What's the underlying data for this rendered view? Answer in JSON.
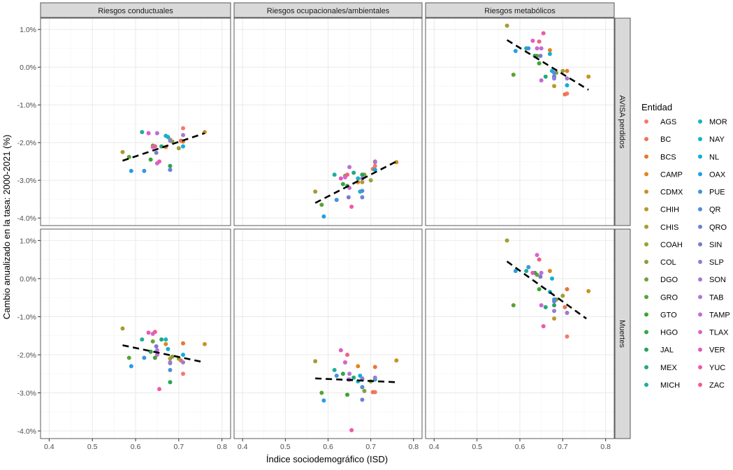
{
  "chart_data": {
    "type": "scatter",
    "xlabel": "Índice sociodemográfico (ISD)",
    "ylabel": "Cambio anualizado en la tasa: 2000-2021 (%)",
    "xlim": [
      0.38,
      0.82
    ],
    "ylim": [
      -4.2,
      1.3
    ],
    "x_ticks": [
      0.4,
      0.5,
      0.6,
      0.7,
      0.8
    ],
    "x_tick_labels": [
      "0.4",
      "0.5",
      "0.6",
      "0.7",
      "0.8"
    ],
    "y_ticks": [
      1,
      0,
      -1,
      -2,
      -3,
      -4
    ],
    "y_tick_labels": [
      "1.0%",
      "0.0%",
      "-1.0%",
      "-2.0%",
      "-3.0%",
      "-4.0%"
    ],
    "grid": true,
    "col_facets": [
      "Riesgos conductuales",
      "Riesgos ocupacionales/ambientales",
      "Riesgos metabólicos"
    ],
    "row_facets": [
      "AVISA perdidos",
      "Muertes"
    ],
    "legend": {
      "title": "Entidad",
      "placement": "right",
      "entities": [
        "AGS",
        "BC",
        "BCS",
        "CAMP",
        "CDMX",
        "CHIH",
        "CHIS",
        "COAH",
        "COL",
        "DGO",
        "GRO",
        "GTO",
        "HGO",
        "JAL",
        "MEX",
        "MICH",
        "MOR",
        "NAY",
        "NL",
        "OAX",
        "PUE",
        "QR",
        "QRO",
        "SIN",
        "SLP",
        "SON",
        "TAB",
        "TAMP",
        "TLAX",
        "VER",
        "YUC",
        "ZAC"
      ],
      "colors": [
        "hsl(4,88%,70%)",
        "hsl(14,80%,62%)",
        "hsl(23,78%,55%)",
        "hsl(32,75%,50%)",
        "hsl(39,70%,47%)",
        "hsl(46,62%,45%)",
        "hsl(55,55%,42%)",
        "hsl(65,50%,42%)",
        "hsl(75,50%,42%)",
        "hsl(88,50%,42%)",
        "hsl(101,52%,42%)",
        "hsl(115,55%,42%)",
        "hsl(130,55%,42%)",
        "hsl(145,60%,40%)",
        "hsl(159,65%,40%)",
        "hsl(172,70%,40%)",
        "hsl(185,80%,42%)",
        "hsl(191,85%,45%)",
        "hsl(196,85%,48%)",
        "hsl(202,80%,52%)",
        "hsl(207,70%,55%)",
        "hsl(213,65%,58%)",
        "hsl(225,55%,62%)",
        "hsl(240,50%,65%)",
        "hsl(255,50%,66%)",
        "hsl(268,50%,65%)",
        "hsl(281,55%,64%)",
        "hsl(293,55%,62%)",
        "hsl(305,60%,62%)",
        "hsl(316,70%,62%)",
        "hsl(328,80%,64%)",
        "hsl(342,85%,66%)"
      ]
    },
    "isd": [
      0.71,
      0.705,
      0.71,
      0.67,
      0.76,
      0.68,
      0.57,
      0.7,
      0.685,
      0.64,
      0.585,
      0.645,
      0.635,
      0.68,
      0.66,
      0.615,
      0.67,
      0.675,
      0.71,
      0.59,
      0.62,
      0.68,
      0.68,
      0.648,
      0.68,
      0.71,
      0.65,
      0.65,
      0.64,
      0.63,
      0.655,
      0.645
    ],
    "panels": [
      {
        "row": 0,
        "col": 0,
        "trend": [
          [
            0.57,
            -2.48
          ],
          [
            0.76,
            -1.75
          ]
        ],
        "values": [
          -1.62,
          -1.95,
          -1.97,
          -2.12,
          -1.72,
          -1.92,
          -2.25,
          -2.15,
          -1.97,
          -2.08,
          -2.38,
          -2.1,
          -2.45,
          -2.62,
          -2.1,
          -1.72,
          -1.82,
          -1.85,
          -2.1,
          -2.75,
          -2.75,
          -2.72,
          -2.72,
          -2.27,
          -1.95,
          -1.8,
          -1.75,
          -2.55,
          -2.12,
          -1.75,
          -2.5,
          -2.1
        ]
      },
      {
        "row": 0,
        "col": 1,
        "trend": [
          [
            0.57,
            -3.6
          ],
          [
            0.76,
            -2.5
          ]
        ],
        "values": [
          -2.62,
          -2.7,
          -2.5,
          -3.05,
          -2.52,
          -3.05,
          -3.3,
          -3.0,
          -2.85,
          -2.88,
          -3.65,
          -3.15,
          -3.1,
          -2.85,
          -2.8,
          -2.85,
          -2.95,
          -3.3,
          -2.72,
          -3.96,
          -3.52,
          -3.28,
          -3.45,
          -3.45,
          -2.95,
          -2.52,
          -2.65,
          -3.2,
          -2.92,
          -2.95,
          -3.7,
          -2.85
        ]
      },
      {
        "row": 0,
        "col": 2,
        "trend": [
          [
            0.57,
            0.72
          ],
          [
            0.76,
            -0.6
          ]
        ],
        "values": [
          -0.7,
          -0.72,
          -0.1,
          0.45,
          -0.25,
          -0.5,
          1.1,
          -0.1,
          -0.15,
          0.3,
          -0.2,
          0.1,
          0.3,
          -0.25,
          -0.25,
          0.5,
          0.35,
          -0.1,
          -0.48,
          0.43,
          0.5,
          -0.25,
          -0.15,
          0.3,
          -0.3,
          -0.3,
          0.5,
          -0.35,
          0.5,
          0.7,
          0.9,
          0.68
        ]
      },
      {
        "row": 1,
        "col": 0,
        "trend": [
          [
            0.57,
            -1.75
          ],
          [
            0.76,
            -2.2
          ]
        ],
        "values": [
          -2.5,
          -2.15,
          -1.7,
          -1.72,
          -1.72,
          -2.1,
          -1.31,
          -2.1,
          -2.05,
          -1.65,
          -2.08,
          -2.08,
          -1.92,
          -2.72,
          -1.6,
          -1.6,
          -1.6,
          -1.85,
          -2.0,
          -2.3,
          -2.08,
          -2.4,
          -2.22,
          -1.78,
          -2.2,
          -2.2,
          -1.88,
          -2.0,
          -1.45,
          -1.42,
          -2.9,
          -1.4
        ]
      },
      {
        "row": 1,
        "col": 1,
        "trend": [
          [
            0.57,
            -2.62
          ],
          [
            0.76,
            -2.72
          ]
        ],
        "values": [
          -2.98,
          -2.98,
          -2.32,
          -2.3,
          -2.15,
          -2.85,
          -2.17,
          -2.7,
          -2.95,
          -2.2,
          -3.0,
          -3.05,
          -2.5,
          -2.65,
          -2.6,
          -2.4,
          -2.7,
          -2.55,
          -2.65,
          -3.2,
          -2.55,
          -2.85,
          -3.18,
          -2.65,
          -2.62,
          -2.6,
          -2.5,
          -2.65,
          -2.2,
          -1.88,
          -3.98,
          -2.0
        ]
      },
      {
        "row": 1,
        "col": 2,
        "trend": [
          [
            0.57,
            0.45
          ],
          [
            0.755,
            -1.05
          ]
        ],
        "values": [
          -1.52,
          -0.75,
          -0.28,
          0.2,
          -0.33,
          -1.05,
          1.0,
          -0.45,
          -0.55,
          0.1,
          -0.7,
          -0.28,
          0.15,
          -0.7,
          -0.75,
          0.2,
          -0.35,
          0.0,
          -0.9,
          0.2,
          0.3,
          -0.55,
          -0.6,
          0.05,
          -0.85,
          -0.9,
          0.15,
          -0.7,
          0.62,
          0.15,
          -1.25,
          0.5
        ]
      }
    ]
  }
}
